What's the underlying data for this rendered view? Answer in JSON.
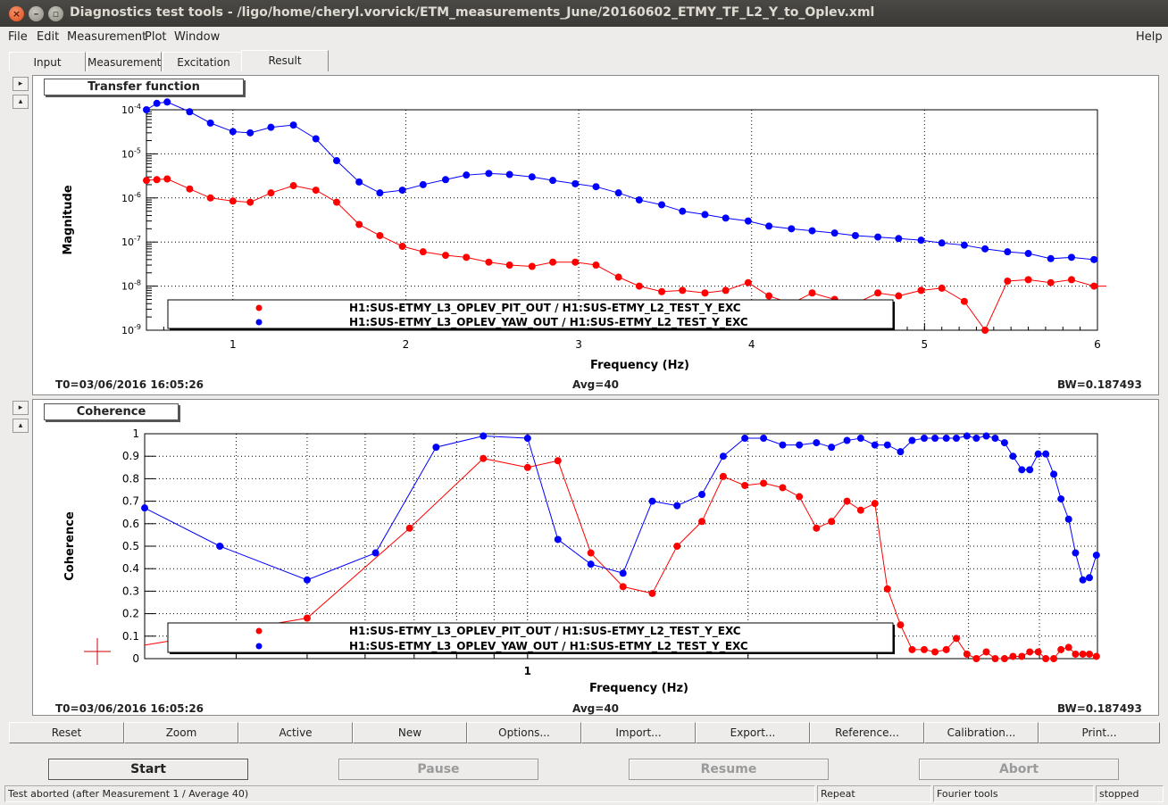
{
  "window": {
    "title": "Diagnostics test tools - /ligo/home/cheryl.vorvick/ETM_measurements_June/20160602_ETMY_TF_L2_Y_to_Oplev.xml",
    "close_glyph": "×",
    "min_glyph": "–",
    "max_glyph": "▫"
  },
  "menu": {
    "file": "File",
    "edit": "Edit",
    "measurement": "Measurement",
    "plot": "Plot",
    "window": "Window",
    "help": "Help"
  },
  "tabs": [
    "Input",
    "Measurement",
    "Excitation",
    "Result"
  ],
  "side_buttons": {
    "expand": "▸",
    "collapse": "▴"
  },
  "tf_panel": {
    "title": "Transfer function",
    "ylabel": "Magnitude",
    "xlabel": "Frequency (Hz)",
    "t0": "T0=03/06/2016 16:05:26",
    "avg": "Avg=40",
    "bw": "BW=0.187493",
    "legend": [
      "H1:SUS-ETMY_L3_OPLEV_PIT_OUT / H1:SUS-ETMY_L2_TEST_Y_EXC",
      "H1:SUS-ETMY_L3_OPLEV_YAW_OUT / H1:SUS-ETMY_L2_TEST_Y_EXC"
    ]
  },
  "coh_panel": {
    "title": "Coherence",
    "ylabel": "Coherence",
    "xlabel": "Frequency (Hz)",
    "t0": "T0=03/06/2016 16:05:26",
    "avg": "Avg=40",
    "bw": "BW=0.187493",
    "legend": [
      "H1:SUS-ETMY_L3_OPLEV_PIT_OUT / H1:SUS-ETMY_L2_TEST_Y_EXC",
      "H1:SUS-ETMY_L3_OPLEV_YAW_OUT / H1:SUS-ETMY_L2_TEST_Y_EXC"
    ]
  },
  "chart_data": [
    {
      "type": "scatter",
      "xlim": [
        0.5,
        6
      ],
      "ylim": [
        1e-09,
        0.0001
      ],
      "yscale": "log",
      "xticks": [
        "1",
        "2",
        "3",
        "4",
        "5",
        "6"
      ],
      "yticks": [
        "10-9",
        "10-8",
        "10-7",
        "10-6",
        "10-5",
        "10-4"
      ],
      "grid": true,
      "legend_position": "bottom-left",
      "colors": [
        "#ff0000",
        "#0000ff"
      ],
      "series": [
        {
          "name": "H1:SUS-ETMY_L3_OPLEV_PIT_OUT / H1:SUS-ETMY_L2_TEST_Y_EXC",
          "x": [
            0.5,
            0.56,
            0.62,
            0.75,
            0.87,
            1.0,
            1.1,
            1.22,
            1.35,
            1.48,
            1.6,
            1.73,
            1.85,
            1.98,
            2.1,
            2.23,
            2.35,
            2.48,
            2.6,
            2.73,
            2.85,
            2.98,
            3.1,
            3.23,
            3.35,
            3.48,
            3.6,
            3.73,
            3.85,
            3.98,
            4.1,
            4.23,
            4.35,
            4.48,
            4.6,
            4.73,
            4.85,
            4.98,
            5.1,
            5.23,
            5.35,
            5.48,
            5.6,
            5.73,
            5.85,
            5.98
          ],
          "y": [
            2.5e-06,
            2.6e-06,
            2.7e-06,
            1.6e-06,
            1e-06,
            8.5e-07,
            8e-07,
            1.3e-06,
            1.9e-06,
            1.5e-06,
            8e-07,
            2.5e-07,
            1.4e-07,
            8e-08,
            6e-08,
            5e-08,
            4.5e-08,
            3.5e-08,
            3e-08,
            2.8e-08,
            3.5e-08,
            3.5e-08,
            3e-08,
            1.6e-08,
            1e-08,
            7.5e-09,
            8e-09,
            7e-09,
            8e-09,
            1.2e-08,
            6e-09,
            4e-09,
            7e-09,
            5e-09,
            4e-09,
            7e-09,
            6e-09,
            8e-09,
            9e-09,
            4.5e-09,
            1e-09,
            1.3e-08,
            1.4e-08,
            1.2e-08,
            1.4e-08,
            1e-08
          ]
        },
        {
          "name": "H1:SUS-ETMY_L3_OPLEV_YAW_OUT / H1:SUS-ETMY_L2_TEST_Y_EXC",
          "x": [
            0.5,
            0.56,
            0.62,
            0.75,
            0.87,
            1.0,
            1.1,
            1.22,
            1.35,
            1.48,
            1.6,
            1.73,
            1.85,
            1.98,
            2.1,
            2.23,
            2.35,
            2.48,
            2.6,
            2.73,
            2.85,
            2.98,
            3.1,
            3.23,
            3.35,
            3.48,
            3.6,
            3.73,
            3.85,
            3.98,
            4.1,
            4.23,
            4.35,
            4.48,
            4.6,
            4.73,
            4.85,
            4.98,
            5.1,
            5.23,
            5.35,
            5.48,
            5.6,
            5.73,
            5.85,
            5.98
          ],
          "y": [
            0.0001,
            0.00014,
            0.00015,
            9e-05,
            5e-05,
            3.2e-05,
            3e-05,
            4e-05,
            4.5e-05,
            2.2e-05,
            7e-06,
            2.3e-06,
            1.3e-06,
            1.5e-06,
            2e-06,
            2.6e-06,
            3.3e-06,
            3.6e-06,
            3.4e-06,
            3e-06,
            2.5e-06,
            2.1e-06,
            1.8e-06,
            1.3e-06,
            9e-07,
            7e-07,
            5e-07,
            4.2e-07,
            3.5e-07,
            3e-07,
            2.3e-07,
            2e-07,
            1.8e-07,
            1.6e-07,
            1.4e-07,
            1.3e-07,
            1.2e-07,
            1.1e-07,
            9.5e-08,
            8.5e-08,
            7e-08,
            6e-08,
            5.5e-08,
            4.2e-08,
            4.5e-08,
            4e-08
          ]
        }
      ]
    },
    {
      "type": "scatter",
      "xlim": [
        0.3,
        6
      ],
      "ylim": [
        0,
        1
      ],
      "xscale": "log",
      "xticks": [
        "1"
      ],
      "yticks": [
        "0",
        "0.1",
        "0.2",
        "0.3",
        "0.4",
        "0.5",
        "0.6",
        "0.7",
        "0.8",
        "0.9",
        "1"
      ],
      "grid": true,
      "legend_position": "bottom-left",
      "colors": [
        "#ff0000",
        "#0000ff"
      ],
      "series": [
        {
          "name": "H1:SUS-ETMY_L3_OPLEV_PIT_OUT / H1:SUS-ETMY_L2_TEST_Y_EXC",
          "x": [
            0.5,
            0.69,
            0.87,
            1.0,
            1.1,
            1.22,
            1.35,
            1.48,
            1.6,
            1.73,
            1.85,
            1.98,
            2.1,
            2.23,
            2.35,
            2.48,
            2.6,
            2.73,
            2.85,
            2.98,
            3.1,
            3.23,
            3.35,
            3.48,
            3.6,
            3.73,
            3.85,
            3.98,
            4.1,
            4.23,
            4.35,
            4.48,
            4.6,
            4.73,
            4.85,
            4.98,
            5.1,
            5.23,
            5.35,
            5.48,
            5.6,
            5.73,
            5.85,
            5.98
          ],
          "y": [
            0.18,
            0.58,
            0.89,
            0.85,
            0.88,
            0.47,
            0.32,
            0.29,
            0.5,
            0.61,
            0.81,
            0.77,
            0.78,
            0.76,
            0.72,
            0.58,
            0.61,
            0.7,
            0.66,
            0.69,
            0.31,
            0.15,
            0.04,
            0.04,
            0.03,
            0.04,
            0.09,
            0.02,
            0.0,
            0.03,
            0.0,
            0.0,
            0.01,
            0.01,
            0.03,
            0.03,
            0.0,
            0.0,
            0.04,
            0.05,
            0.02,
            0.02,
            0.02,
            0.01
          ],
          "note_x_first": 0.3
        },
        {
          "name": "H1:SUS-ETMY_L3_OPLEV_YAW_OUT / H1:SUS-ETMY_L2_TEST_Y_EXC",
          "x": [
            0.3,
            0.38,
            0.5,
            0.62,
            0.75,
            0.87,
            1.0,
            1.1,
            1.22,
            1.35,
            1.48,
            1.6,
            1.73,
            1.85,
            1.98,
            2.1,
            2.23,
            2.35,
            2.48,
            2.6,
            2.73,
            2.85,
            2.98,
            3.1,
            3.23,
            3.35,
            3.48,
            3.6,
            3.73,
            3.85,
            3.98,
            4.1,
            4.23,
            4.35,
            4.48,
            4.6,
            4.73,
            4.85,
            4.98,
            5.1,
            5.23,
            5.35,
            5.48,
            5.6,
            5.73,
            5.85,
            5.98
          ],
          "y": [
            0.67,
            0.5,
            0.35,
            0.47,
            0.94,
            0.99,
            0.98,
            0.53,
            0.42,
            0.38,
            0.7,
            0.68,
            0.73,
            0.9,
            0.98,
            0.98,
            0.95,
            0.95,
            0.96,
            0.94,
            0.97,
            0.98,
            0.95,
            0.95,
            0.92,
            0.97,
            0.98,
            0.98,
            0.98,
            0.98,
            0.99,
            0.98,
            0.99,
            0.98,
            0.96,
            0.9,
            0.84,
            0.84,
            0.91,
            0.91,
            0.82,
            0.71,
            0.62,
            0.47,
            0.35,
            0.36,
            0.46
          ]
        }
      ]
    }
  ],
  "toolbar": [
    "Reset",
    "Zoom",
    "Active",
    "New",
    "Options...",
    "Import...",
    "Export...",
    "Reference...",
    "Calibration...",
    "Print..."
  ],
  "controls": {
    "start": "Start",
    "pause": "Pause",
    "resume": "Resume",
    "abort": "Abort"
  },
  "statusbar": {
    "message": "Test aborted (after Measurement 1 / Average 40)",
    "repeat": "Repeat",
    "tool": "Fourier tools",
    "state": "stopped"
  }
}
